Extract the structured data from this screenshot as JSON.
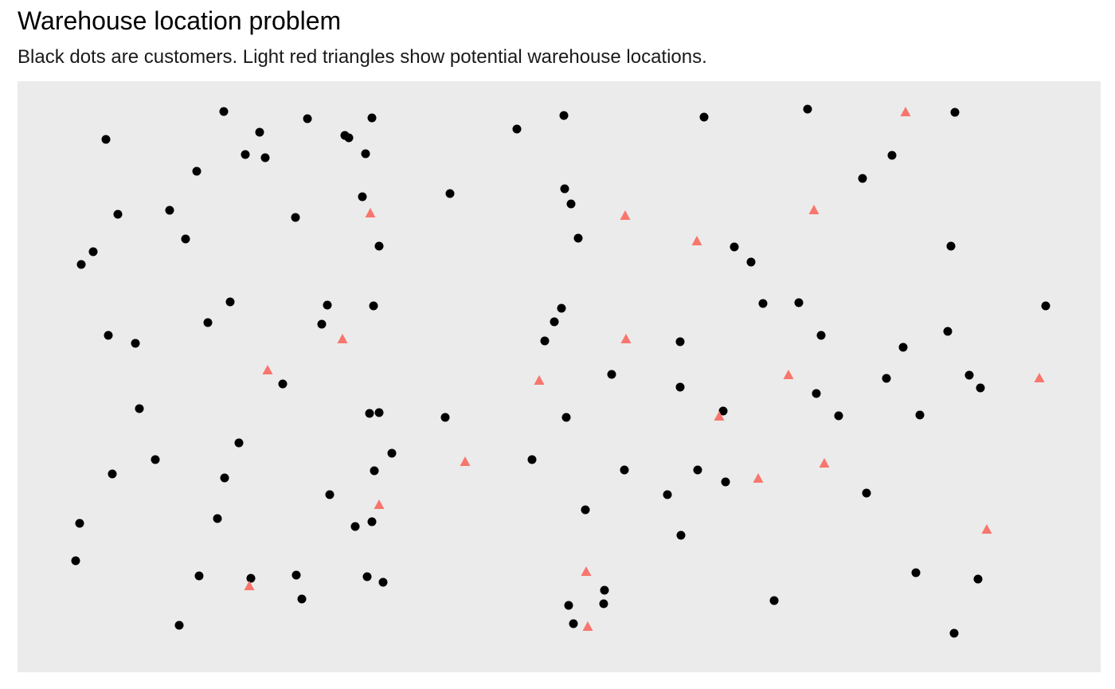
{
  "chart_data": {
    "type": "scatter",
    "title": "Warehouse location problem",
    "subtitle": "Black dots are customers. Light red triangles show potential warehouse locations.",
    "axes_visible": false,
    "grid": false,
    "panel_background": "#EBEBEB",
    "series": [
      {
        "marker": "circle",
        "color": "#000000",
        "points": [
          [
            133,
            175
          ],
          [
            148,
            269
          ],
          [
            117,
            316
          ],
          [
            102,
            332
          ],
          [
            136,
            421
          ],
          [
            170,
            431
          ],
          [
            175,
            513
          ],
          [
            195,
            577
          ],
          [
            141,
            595
          ],
          [
            100,
            657
          ],
          [
            95,
            704
          ],
          [
            225,
            785
          ],
          [
            281,
            140
          ],
          [
            326,
            166
          ],
          [
            308,
            194
          ],
          [
            333,
            198
          ],
          [
            247,
            215
          ],
          [
            213,
            264
          ],
          [
            233,
            300
          ],
          [
            289,
            379
          ],
          [
            261,
            405
          ],
          [
            355,
            482
          ],
          [
            300,
            556
          ],
          [
            282,
            600
          ],
          [
            273,
            651
          ],
          [
            250,
            723
          ],
          [
            315,
            726
          ],
          [
            372,
            722
          ],
          [
            379,
            752
          ],
          [
            386,
            149
          ],
          [
            433,
            170
          ],
          [
            438,
            173
          ],
          [
            467,
            148
          ],
          [
            459,
            193
          ],
          [
            455,
            247
          ],
          [
            371,
            273
          ],
          [
            476,
            309
          ],
          [
            411,
            383
          ],
          [
            469,
            384
          ],
          [
            404,
            407
          ],
          [
            464,
            519
          ],
          [
            476,
            518
          ],
          [
            492,
            569
          ],
          [
            470,
            591
          ],
          [
            414,
            621
          ],
          [
            467,
            655
          ],
          [
            446,
            661
          ],
          [
            461,
            724
          ],
          [
            481,
            731
          ],
          [
            565,
            243
          ],
          [
            559,
            524
          ],
          [
            649,
            162
          ],
          [
            708,
            145
          ],
          [
            709,
            237
          ],
          [
            717,
            256
          ],
          [
            726,
            299
          ],
          [
            705,
            387
          ],
          [
            696,
            404
          ],
          [
            684,
            428
          ],
          [
            668,
            577
          ],
          [
            711,
            524
          ],
          [
            768,
            470
          ],
          [
            784,
            590
          ],
          [
            735,
            640
          ],
          [
            759,
            741
          ],
          [
            714,
            760
          ],
          [
            758,
            758
          ],
          [
            720,
            783
          ],
          [
            884,
            147
          ],
          [
            854,
            429
          ],
          [
            854,
            486
          ],
          [
            838,
            621
          ],
          [
            876,
            590
          ],
          [
            855,
            672
          ],
          [
            908,
            516
          ],
          [
            911,
            605
          ],
          [
            922,
            310
          ],
          [
            943,
            329
          ],
          [
            958,
            381
          ],
          [
            1003,
            380
          ],
          [
            1031,
            421
          ],
          [
            1025,
            494
          ],
          [
            1053,
            522
          ],
          [
            1014,
            137
          ],
          [
            972,
            754
          ],
          [
            1199,
            141
          ],
          [
            1120,
            195
          ],
          [
            1083,
            224
          ],
          [
            1194,
            309
          ],
          [
            1313,
            384
          ],
          [
            1190,
            416
          ],
          [
            1134,
            436
          ],
          [
            1113,
            475
          ],
          [
            1217,
            471
          ],
          [
            1231,
            487
          ],
          [
            1155,
            521
          ],
          [
            1088,
            619
          ],
          [
            1150,
            719
          ],
          [
            1228,
            727
          ],
          [
            1198,
            795
          ]
        ]
      },
      {
        "marker": "triangle",
        "color": "#F8766D",
        "points": [
          [
            1137,
            141
          ],
          [
            465,
            268
          ],
          [
            785,
            271
          ],
          [
            1022,
            264
          ],
          [
            875,
            303
          ],
          [
            430,
            426
          ],
          [
            786,
            426
          ],
          [
            336,
            465
          ],
          [
            677,
            478
          ],
          [
            990,
            471
          ],
          [
            1305,
            475
          ],
          [
            903,
            523
          ],
          [
            584,
            580
          ],
          [
            1035,
            582
          ],
          [
            952,
            601
          ],
          [
            476,
            634
          ],
          [
            1239,
            665
          ],
          [
            736,
            718
          ],
          [
            313,
            736
          ],
          [
            738,
            787
          ]
        ]
      }
    ]
  }
}
